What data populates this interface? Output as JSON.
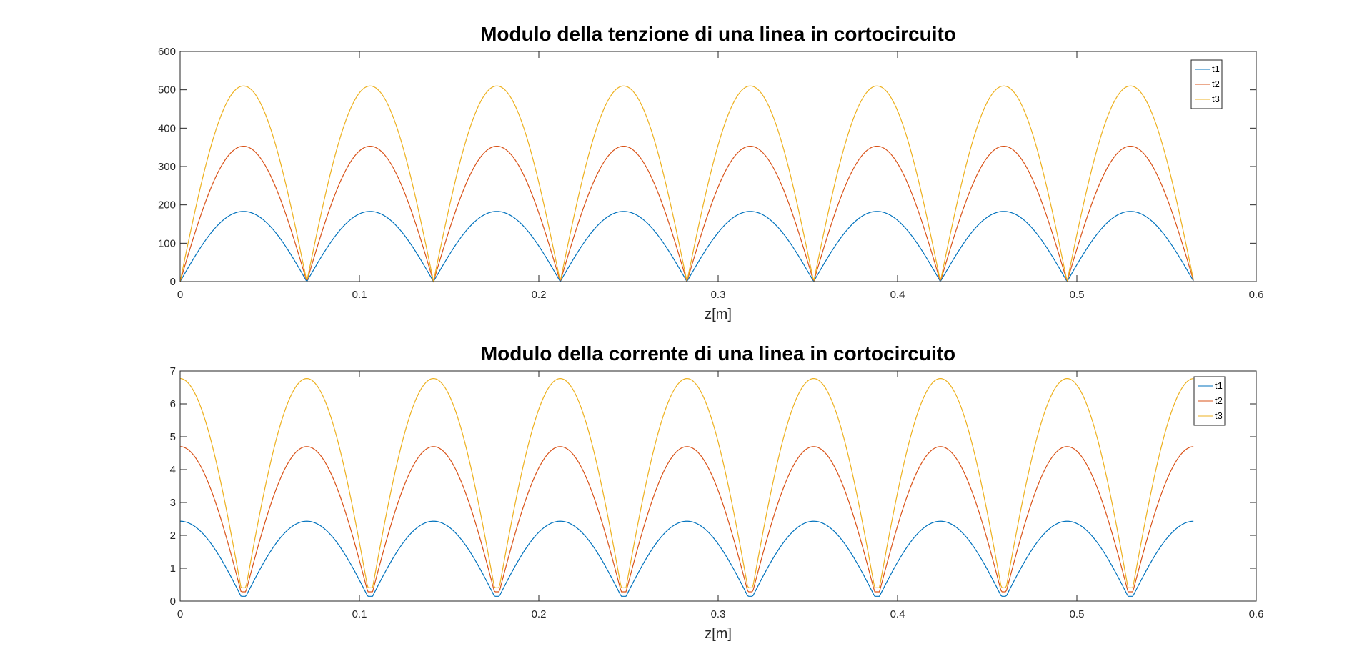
{
  "chart_data": [
    {
      "type": "line",
      "title": "Modulo della tenzione di una linea in cortocircuito",
      "xlabel": "z[m]",
      "ylabel": "",
      "xlim": [
        0,
        0.6
      ],
      "ylim": [
        0,
        600
      ],
      "xticks": [
        "0",
        "0.1",
        "0.2",
        "0.3",
        "0.4",
        "0.5",
        "0.6"
      ],
      "yticks": [
        "0",
        "100",
        "200",
        "300",
        "400",
        "500",
        "600"
      ],
      "grid": false,
      "legend": "top-right",
      "curve": {
        "shape": "abs-sine",
        "period": 0.1413,
        "phase": "zero at z=0",
        "z_range": [
          0,
          0.565
        ]
      },
      "series": [
        {
          "name": "t1",
          "peak": 183,
          "color": "#0072BD"
        },
        {
          "name": "t2",
          "peak": 353,
          "color": "#D95319"
        },
        {
          "name": "t3",
          "peak": 510,
          "color": "#EDB120"
        }
      ]
    },
    {
      "type": "line",
      "title": "Modulo della corrente di una linea in cortocircuito",
      "xlabel": "z[m]",
      "ylabel": "",
      "xlim": [
        0,
        0.6
      ],
      "ylim": [
        0,
        7
      ],
      "xticks": [
        "0",
        "0.1",
        "0.2",
        "0.3",
        "0.4",
        "0.5",
        "0.6"
      ],
      "yticks": [
        "0",
        "1",
        "2",
        "3",
        "4",
        "5",
        "6",
        "7"
      ],
      "grid": false,
      "legend": "top-right",
      "curve": {
        "shape": "abs-cosine",
        "period": 0.1413,
        "phase": "peak at z=0",
        "z_range": [
          0,
          0.565
        ]
      },
      "series": [
        {
          "name": "t1",
          "peak": 2.43,
          "color": "#0072BD"
        },
        {
          "name": "t2",
          "peak": 4.7,
          "color": "#D95319"
        },
        {
          "name": "t3",
          "peak": 6.77,
          "color": "#EDB120"
        }
      ]
    }
  ]
}
